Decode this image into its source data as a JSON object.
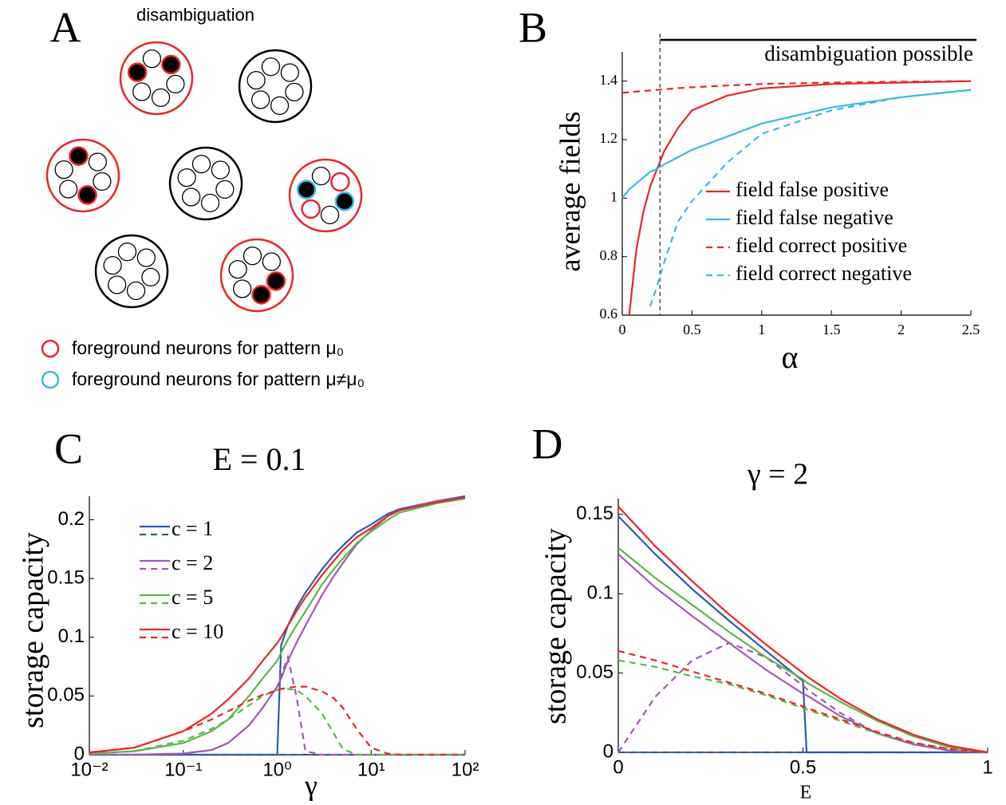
{
  "panel_a": {
    "letter": "A",
    "title": "disambiguation",
    "legend": [
      "foreground neurons for pattern μ₀",
      "foreground neurons for pattern μ≠μ₀"
    ]
  },
  "chart_data": [
    {
      "type": "line",
      "panel_label": "B",
      "xlabel": "α",
      "ylabel": "average fields",
      "annotation": "disambiguation possible",
      "disambiguation_start": 0.27,
      "xlim": [
        0,
        2.5
      ],
      "ylim": [
        0.6,
        1.5
      ],
      "xticks": [
        0,
        0.5,
        1,
        1.5,
        2,
        2.5
      ],
      "yticks": [
        0.6,
        0.8,
        1,
        1.2,
        1.4
      ],
      "x": [
        0,
        0.05,
        0.1,
        0.15,
        0.2,
        0.25,
        0.3,
        0.4,
        0.5,
        0.75,
        1,
        1.5,
        2,
        2.5
      ],
      "series": [
        {
          "name": "field false positive",
          "color": "#e8262a",
          "values": [
            null,
            0.6,
            0.82,
            0.95,
            1.04,
            1.1,
            1.16,
            1.24,
            1.3,
            1.35,
            1.375,
            1.39,
            1.395,
            1.4
          ]
        },
        {
          "name": "field false negative",
          "color": "#3cb8e6",
          "values": [
            1.0,
            1.03,
            1.05,
            1.07,
            1.09,
            1.1,
            1.115,
            1.14,
            1.165,
            1.21,
            1.255,
            1.31,
            1.345,
            1.37
          ]
        },
        {
          "name": "field correct positive",
          "color": "#e8262a",
          "dashed": true,
          "values": [
            1.36,
            1.362,
            1.364,
            1.366,
            1.368,
            1.37,
            1.372,
            1.376,
            1.379,
            1.385,
            1.39,
            1.395,
            1.398,
            1.4
          ]
        },
        {
          "name": "field correct negative",
          "color": "#3cb8e6",
          "dashed": true,
          "values": [
            null,
            null,
            null,
            null,
            0.63,
            0.7,
            0.78,
            0.92,
            0.99,
            1.12,
            1.22,
            1.3,
            1.345,
            1.37
          ]
        }
      ]
    },
    {
      "type": "line",
      "panel_label": "C",
      "title": "E = 0.1",
      "xlabel": "γ",
      "ylabel": "storage capacity",
      "xlog": true,
      "xlim": [
        0.01,
        100
      ],
      "ylim": [
        0,
        0.22
      ],
      "xticks": [
        {
          "value": 0.01,
          "label": "10⁻²"
        },
        {
          "value": 0.1,
          "label": "10⁻¹"
        },
        {
          "value": 1,
          "label": "10⁰"
        },
        {
          "value": 10,
          "label": "10¹"
        },
        {
          "value": 100,
          "label": "10²"
        }
      ],
      "yticks": [
        0,
        0.05,
        0.1,
        0.15,
        0.2
      ],
      "x": [
        0.01,
        0.03,
        0.1,
        0.2,
        0.3,
        0.5,
        0.7,
        1,
        1.1,
        1.3,
        1.6,
        2,
        3,
        4,
        5,
        7,
        10,
        15,
        20,
        50,
        100
      ],
      "series": [
        {
          "name": "c = 1",
          "color": "#2a5caa",
          "values": [
            0,
            0,
            0,
            0,
            0,
            0,
            0,
            0,
            0.093,
            0.11,
            0.125,
            0.138,
            0.158,
            0.17,
            0.178,
            0.189,
            0.196,
            0.205,
            0.209,
            0.216,
            0.22
          ],
          "values_dashed": [
            0,
            0,
            0,
            0,
            0,
            0,
            0,
            0,
            0,
            0,
            0,
            0,
            0,
            0,
            0,
            0,
            0,
            0,
            0,
            0,
            0
          ]
        },
        {
          "name": "c = 2",
          "color": "#a259b5",
          "values": [
            0,
            0,
            0.001,
            0.004,
            0.01,
            0.025,
            0.04,
            0.058,
            0.065,
            0.08,
            0.095,
            0.11,
            0.136,
            0.152,
            0.163,
            0.179,
            0.191,
            0.203,
            0.208,
            0.216,
            0.219
          ],
          "values_dashed": [
            0,
            0,
            0.001,
            0.004,
            0.01,
            0.025,
            0.04,
            0.058,
            0.068,
            0.083,
            0.05,
            0.003,
            0,
            0,
            0,
            0,
            0,
            0,
            0,
            0,
            0
          ]
        },
        {
          "name": "c = 5",
          "color": "#5db646",
          "values": [
            0.001,
            0.003,
            0.01,
            0.02,
            0.03,
            0.05,
            0.065,
            0.08,
            0.087,
            0.098,
            0.11,
            0.122,
            0.145,
            0.158,
            0.167,
            0.18,
            0.19,
            0.2,
            0.206,
            0.214,
            0.218
          ],
          "values_dashed": [
            0.001,
            0.003,
            0.012,
            0.022,
            0.03,
            0.042,
            0.05,
            0.055,
            0.056,
            0.056,
            0.055,
            0.05,
            0.035,
            0.018,
            0.005,
            0,
            0,
            0,
            0,
            0,
            0
          ]
        },
        {
          "name": "c = 10",
          "color": "#e8262a",
          "values": [
            0.002,
            0.006,
            0.02,
            0.035,
            0.047,
            0.065,
            0.08,
            0.095,
            0.1,
            0.11,
            0.122,
            0.134,
            0.153,
            0.165,
            0.174,
            0.185,
            0.193,
            0.203,
            0.208,
            0.215,
            0.219
          ],
          "values_dashed": [
            0.002,
            0.006,
            0.02,
            0.03,
            0.037,
            0.046,
            0.051,
            0.055,
            0.056,
            0.057,
            0.058,
            0.058,
            0.054,
            0.048,
            0.04,
            0.022,
            0.006,
            0.001,
            0,
            0,
            0
          ]
        }
      ]
    },
    {
      "type": "line",
      "panel_label": "D",
      "title": "γ = 2",
      "xlabel": "E",
      "ylabel": "storage capacity",
      "xlim": [
        0,
        1
      ],
      "ylim": [
        0,
        0.16
      ],
      "xticks": [
        0,
        0.5,
        1
      ],
      "yticks": [
        0,
        0.05,
        0.1,
        0.15
      ],
      "x": [
        0,
        0.1,
        0.2,
        0.3,
        0.4,
        0.5,
        0.51,
        0.6,
        0.7,
        0.8,
        0.9,
        1
      ],
      "series": [
        {
          "color": "#2a5caa",
          "values": [
            0.149,
            0.125,
            0.103,
            0.083,
            0.064,
            0.045,
            0,
            0,
            0,
            0,
            0,
            0
          ],
          "values_dashed": [
            0,
            0,
            0,
            0,
            0,
            0,
            0,
            0,
            0,
            0,
            0,
            0
          ]
        },
        {
          "color": "#a259b5",
          "values": [
            0.125,
            0.104,
            0.086,
            0.069,
            0.052,
            0.037,
            0.036,
            0.023,
            0.012,
            0.005,
            0.001,
            0
          ],
          "values_dashed": [
            0,
            0.035,
            0.058,
            0.069,
            0.06,
            0.042,
            0.04,
            0.025,
            0.012,
            0.005,
            0.001,
            0
          ]
        },
        {
          "color": "#5db646",
          "values": [
            0.129,
            0.11,
            0.093,
            0.076,
            0.06,
            0.046,
            0.044,
            0.032,
            0.02,
            0.01,
            0.003,
            0
          ],
          "values_dashed": [
            0.058,
            0.054,
            0.048,
            0.043,
            0.036,
            0.028,
            0.027,
            0.02,
            0.012,
            0.006,
            0.002,
            0
          ]
        },
        {
          "color": "#e8262a",
          "values": [
            0.155,
            0.13,
            0.108,
            0.087,
            0.068,
            0.05,
            0.048,
            0.034,
            0.021,
            0.011,
            0.004,
            0
          ],
          "values_dashed": [
            0.064,
            0.058,
            0.051,
            0.044,
            0.037,
            0.029,
            0.028,
            0.021,
            0.013,
            0.006,
            0.002,
            0
          ]
        }
      ]
    }
  ]
}
